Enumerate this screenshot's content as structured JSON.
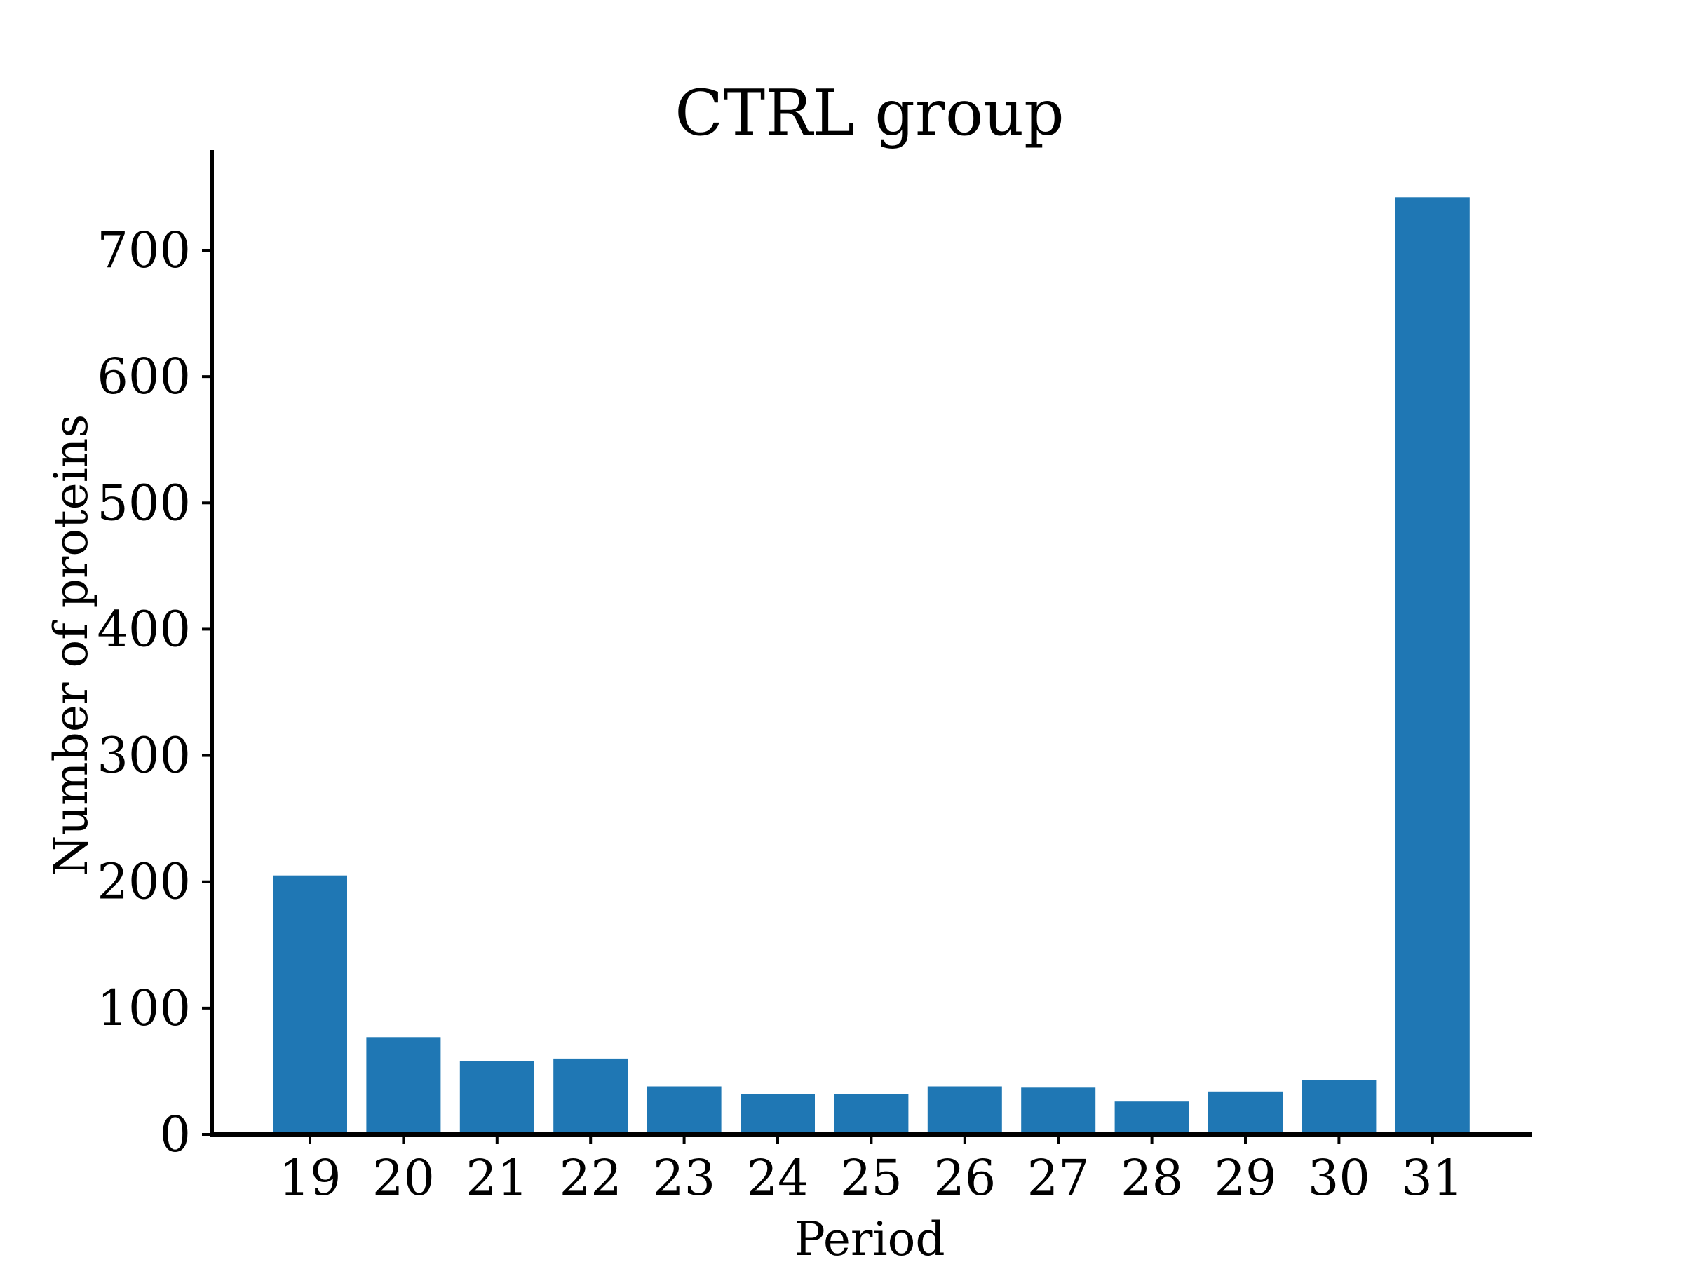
{
  "chart_data": {
    "type": "bar",
    "title": "CTRL group",
    "xlabel": "Period",
    "ylabel": "Number of proteins",
    "categories": [
      "19",
      "20",
      "21",
      "22",
      "23",
      "24",
      "25",
      "26",
      "27",
      "28",
      "29",
      "30",
      "31"
    ],
    "values": [
      205,
      77,
      58,
      60,
      38,
      32,
      32,
      38,
      37,
      26,
      34,
      43,
      742
    ],
    "ylim": [
      0,
      780
    ],
    "yticks": [
      "0",
      "100",
      "200",
      "300",
      "400",
      "500",
      "600",
      "700"
    ],
    "bar_color": "#1f77b4",
    "grid": false,
    "legend": "none"
  }
}
